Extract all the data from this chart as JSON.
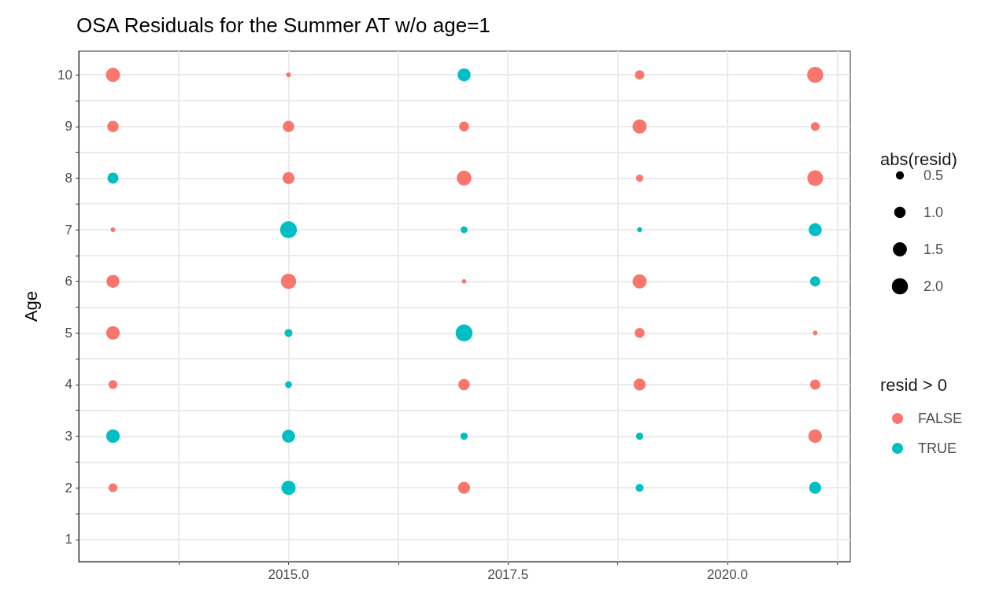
{
  "chart_data": {
    "type": "bubble",
    "title": "OSA Residuals for the Summer AT w/o age=1",
    "ylabel": "Age",
    "legend_title": "resid > 0",
    "annotations": [
      "abs(resid)"
    ],
    "xlim": [
      2012.61,
      2021.4
    ],
    "xticks": [
      {
        "value": 2013.75,
        "label": null
      },
      {
        "value": 2015,
        "label": "2015.0"
      },
      {
        "value": 2016.25,
        "label": null
      },
      {
        "value": 2017.5,
        "label": "2017.5"
      },
      {
        "value": 2018.75,
        "label": null
      },
      {
        "value": 2020,
        "label": "2020.0"
      },
      {
        "value": 2021.25,
        "label": null
      }
    ],
    "ylim": [
      0.57,
      10.46
    ],
    "yticks": [
      1,
      {
        "value": 1.5,
        "label": null
      },
      2,
      {
        "value": 2.5,
        "label": null
      },
      3,
      {
        "value": 3.5,
        "label": null
      },
      4,
      {
        "value": 4.5,
        "label": null
      },
      5,
      {
        "value": 5.5,
        "label": null
      },
      6,
      {
        "value": 6.5,
        "label": null
      },
      7,
      {
        "value": 7.5,
        "label": null
      },
      8,
      {
        "value": 8.5,
        "label": null
      },
      9,
      {
        "value": 9.5,
        "label": null
      },
      10
    ],
    "size_legend": [
      0.5,
      {
        "value": 1,
        "label": "1.0"
      },
      1.5,
      {
        "value": 2,
        "label": "2.0"
      }
    ],
    "grid": true,
    "legend": "right",
    "marker": "circle",
    "series": [
      {
        "name": "FALSE",
        "color": "#f8766d",
        "x": [
          2013,
          2013,
          2013,
          2013,
          2013,
          2013,
          2013,
          2015,
          2015,
          2015,
          2015,
          2017,
          2017,
          2017,
          2017,
          2017,
          2019,
          2019,
          2019,
          2019,
          2019,
          2019,
          2021,
          2021,
          2021,
          2021,
          2021,
          2021
        ],
        "values": [
          10,
          9,
          7,
          6,
          5,
          4,
          2,
          10,
          9,
          8,
          6,
          9,
          8,
          6,
          4,
          2,
          10,
          9,
          8,
          6,
          5,
          4,
          10,
          9,
          8,
          5,
          4,
          3
        ],
        "sizes": [
          1.54,
          1.0,
          0.17,
          1.3,
          1.4,
          0.6,
          0.6,
          0.18,
          1.0,
          1.1,
          1.8,
          0.76,
          1.65,
          0.16,
          1.0,
          1.1,
          0.68,
          1.54,
          0.4,
          1.54,
          0.76,
          1.1,
          2.0,
          0.6,
          1.9,
          0.17,
          0.8,
          1.4
        ]
      },
      {
        "name": "TRUE",
        "color": "#00bfc4",
        "x": [
          2013,
          2013,
          2015,
          2015,
          2015,
          2015,
          2015,
          2017,
          2017,
          2017,
          2017,
          2019,
          2019,
          2019,
          2021,
          2021,
          2021
        ],
        "values": [
          8,
          3,
          7,
          5,
          4,
          3,
          2,
          10,
          7,
          5,
          3,
          7,
          3,
          2,
          7,
          6,
          2
        ],
        "sizes": [
          0.93,
          1.4,
          2.2,
          0.48,
          0.36,
          1.3,
          1.54,
          1.3,
          0.36,
          2.2,
          0.4,
          0.2,
          0.4,
          0.48,
          1.3,
          0.8,
          1.1
        ]
      }
    ]
  }
}
